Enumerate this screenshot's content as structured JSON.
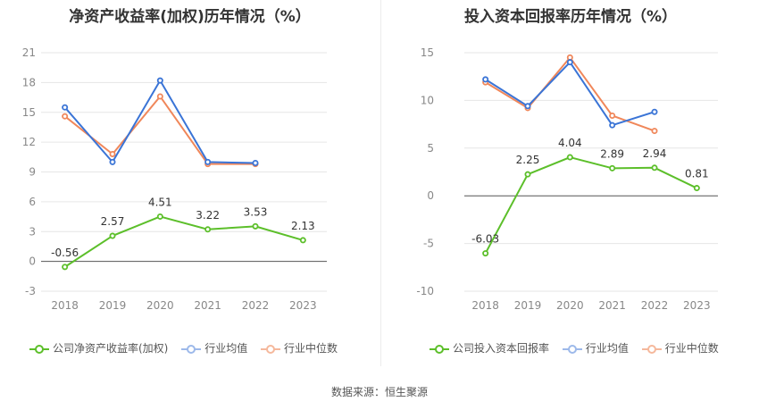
{
  "footer": "数据来源：恒生聚源",
  "colors": {
    "company": "#5cbf2a",
    "avg": "#3a74d6",
    "median": "#f0875a",
    "grid": "#e6e6e6",
    "axis": "#999999"
  },
  "chart_data": [
    {
      "type": "line",
      "title": "净资产收益率(加权)历年情况（%）",
      "categories": [
        "2018",
        "2019",
        "2020",
        "2021",
        "2022",
        "2023"
      ],
      "ylim": [
        -3,
        21
      ],
      "yticks": [
        -3,
        0,
        3,
        6,
        9,
        12,
        15,
        18,
        21
      ],
      "grid": true,
      "legend_position": "bottom",
      "series": [
        {
          "name": "公司净资产收益率(加权)",
          "color": "#5cbf2a",
          "values": [
            -0.56,
            2.57,
            4.51,
            3.22,
            3.53,
            2.13
          ],
          "labels": [
            "-0.56",
            "2.57",
            "4.51",
            "3.22",
            "3.53",
            "2.13"
          ]
        },
        {
          "name": "行业均值",
          "color": "#3a74d6",
          "values": [
            15.5,
            10.0,
            18.2,
            10.0,
            9.9,
            null
          ]
        },
        {
          "name": "行业中位数",
          "color": "#f0875a",
          "values": [
            14.6,
            10.8,
            16.6,
            9.8,
            9.8,
            null
          ]
        }
      ]
    },
    {
      "type": "line",
      "title": "投入资本回报率历年情况（%）",
      "categories": [
        "2018",
        "2019",
        "2020",
        "2021",
        "2022",
        "2023"
      ],
      "ylim": [
        -10,
        15
      ],
      "yticks": [
        -10,
        -5,
        0,
        5,
        10,
        15
      ],
      "grid": true,
      "legend_position": "bottom",
      "series": [
        {
          "name": "公司投入资本回报率",
          "color": "#5cbf2a",
          "values": [
            -6.03,
            2.25,
            4.04,
            2.89,
            2.94,
            0.81
          ],
          "labels": [
            "-6.03",
            "2.25",
            "4.04",
            "2.89",
            "2.94",
            "0.81"
          ]
        },
        {
          "name": "行业均值",
          "color": "#3a74d6",
          "values": [
            12.2,
            9.4,
            14.0,
            7.4,
            8.8,
            null
          ]
        },
        {
          "name": "行业中位数",
          "color": "#f0875a",
          "values": [
            11.9,
            9.2,
            14.5,
            8.4,
            6.8,
            null
          ]
        }
      ]
    }
  ]
}
